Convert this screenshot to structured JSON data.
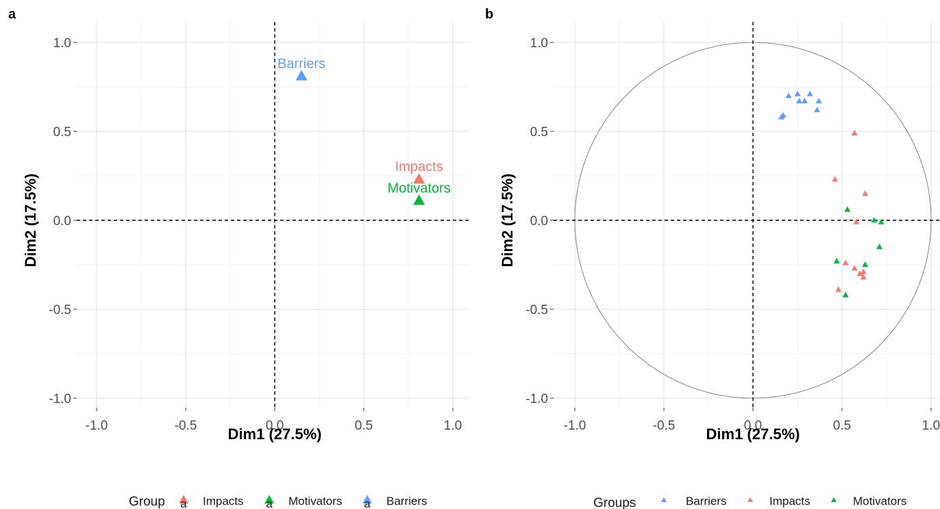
{
  "chart_data": [
    {
      "panel": "a",
      "type": "scatter",
      "xlabel": "Dim1 (27.5%)",
      "ylabel": "Dim2 (17.5%)",
      "xlim": [
        -1.1,
        1.1
      ],
      "ylim": [
        -1.1,
        1.1
      ],
      "xticks": [
        "-1.0",
        "-0.5",
        "0.0",
        "0.5",
        "1.0"
      ],
      "yticks": [
        "1.0",
        "0.5",
        "0.0",
        "-0.5",
        "-1.0"
      ],
      "grid": true,
      "legend_title": "Group",
      "legend_position": "bottom",
      "series": [
        {
          "name": "Impacts",
          "color": "#F8766D",
          "x": 0.81,
          "y": 0.23,
          "label": "Impacts"
        },
        {
          "name": "Motivators",
          "color": "#00BA38",
          "x": 0.81,
          "y": 0.11,
          "label": "Motivators"
        },
        {
          "name": "Barriers",
          "color": "#619CFF",
          "x": 0.15,
          "y": 0.81,
          "label": "Barriers"
        }
      ]
    },
    {
      "panel": "b",
      "type": "scatter",
      "xlabel": "Dim1 (27.5%)",
      "ylabel": "Dim2 (17.5%)",
      "xlim": [
        -1.1,
        1.05
      ],
      "ylim": [
        -1.1,
        1.1
      ],
      "xticks": [
        "-1.0",
        "-0.5",
        "0.0",
        "0.5",
        "1.0"
      ],
      "yticks": [
        "1.0",
        "0.5",
        "0.0",
        "-0.5",
        "-1.0"
      ],
      "grid": true,
      "unit_circle": true,
      "legend_title": "Groups",
      "legend_position": "bottom",
      "series": [
        {
          "name": "Barriers",
          "color": "#619CFF",
          "points": [
            [
              0.2,
              0.7
            ],
            [
              0.25,
              0.71
            ],
            [
              0.32,
              0.71
            ],
            [
              0.26,
              0.67
            ],
            [
              0.29,
              0.67
            ],
            [
              0.37,
              0.67
            ],
            [
              0.36,
              0.62
            ],
            [
              0.17,
              0.59
            ],
            [
              0.16,
              0.58
            ]
          ]
        },
        {
          "name": "Impacts",
          "color": "#F8766D",
          "points": [
            [
              0.57,
              0.49
            ],
            [
              0.46,
              0.23
            ],
            [
              0.63,
              0.15
            ],
            [
              0.58,
              -0.01
            ],
            [
              0.52,
              -0.24
            ],
            [
              0.57,
              -0.27
            ],
            [
              0.6,
              -0.3
            ],
            [
              0.62,
              -0.29
            ],
            [
              0.62,
              -0.32
            ],
            [
              0.48,
              -0.39
            ]
          ]
        },
        {
          "name": "Motivators",
          "color": "#00BA38",
          "points": [
            [
              0.53,
              0.06
            ],
            [
              0.68,
              0.0
            ],
            [
              0.72,
              -0.01
            ],
            [
              0.71,
              -0.15
            ],
            [
              0.47,
              -0.23
            ],
            [
              0.63,
              -0.25
            ],
            [
              0.52,
              -0.42
            ]
          ]
        }
      ]
    }
  ]
}
